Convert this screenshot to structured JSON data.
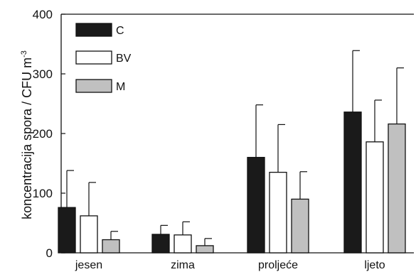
{
  "chart_data": {
    "type": "bar",
    "title": "",
    "xlabel": "",
    "ylabel": "koncentracija spora / CFU m",
    "ylabel_superscript": "-3",
    "ylim": [
      0,
      400
    ],
    "yticks": [
      0,
      100,
      200,
      300,
      400
    ],
    "categories": [
      "jesen",
      "zima",
      "proljeće",
      "ljeto"
    ],
    "legend_position": "top-left",
    "grid": false,
    "series": [
      {
        "name": "C",
        "color": "#1a1a1a",
        "values": [
          76,
          31,
          160,
          236
        ],
        "error_upper": [
          138,
          46,
          248,
          339
        ]
      },
      {
        "name": "BV",
        "color": "#ffffff",
        "values": [
          62,
          30,
          135,
          186
        ],
        "error_upper": [
          118,
          52,
          215,
          256
        ]
      },
      {
        "name": "M",
        "color": "#c0c0c0",
        "values": [
          22,
          12,
          90,
          216
        ],
        "error_upper": [
          36,
          24,
          136,
          310
        ]
      }
    ]
  }
}
